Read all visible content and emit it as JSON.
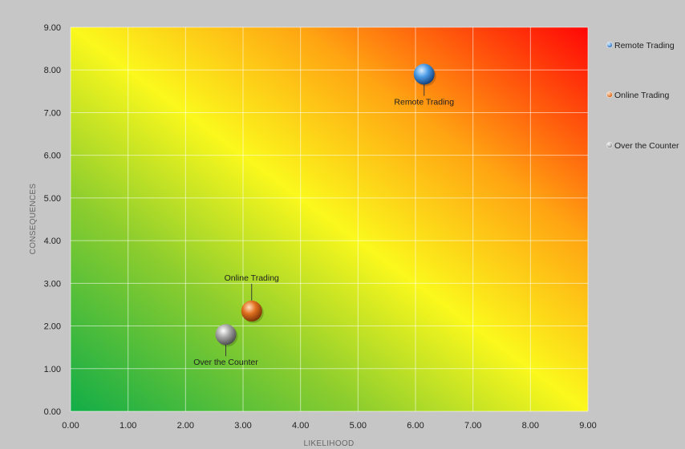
{
  "chart_data": {
    "type": "scatter",
    "title": "",
    "xlabel": "LIKELIHOOD",
    "ylabel": "CONSEQUENCES",
    "xlim": [
      0,
      9
    ],
    "ylim": [
      0,
      9
    ],
    "x_ticks": [
      "0.00",
      "1.00",
      "2.00",
      "3.00",
      "4.00",
      "5.00",
      "6.00",
      "7.00",
      "8.00",
      "9.00"
    ],
    "y_ticks": [
      "0.00",
      "1.00",
      "2.00",
      "3.00",
      "4.00",
      "5.00",
      "6.00",
      "7.00",
      "8.00",
      "9.00"
    ],
    "grid": true,
    "legend_position": "right",
    "background": "diagonal gradient green (low) to yellow to red (high)",
    "series": [
      {
        "name": "Remote Trading",
        "x": 6.15,
        "y": 7.9,
        "label": "Remote Trading",
        "color": "#3f8fe0"
      },
      {
        "name": "Online Trading",
        "x": 3.15,
        "y": 2.35,
        "label": "Online Trading",
        "color": "#e0701f"
      },
      {
        "name": "Over the Counter",
        "x": 2.7,
        "y": 1.8,
        "label": "Over the Counter",
        "color": "#a4a4a4"
      }
    ]
  }
}
